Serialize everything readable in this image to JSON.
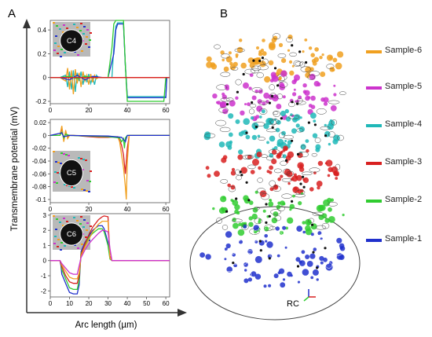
{
  "figure": {
    "panel_a": "A",
    "panel_b": "B",
    "y_axis_label": "Transmembrane potential (mV)",
    "x_axis_label": "Arc length (µm)",
    "rc_label": "RC"
  },
  "colors": {
    "orange": "#f0a020",
    "magenta": "#cc33cc",
    "cyan": "#20b8b8",
    "red": "#d82020",
    "green": "#30cc30",
    "blue": "#2030cc"
  },
  "chart_data": [
    {
      "type": "line",
      "inset_label": "C4",
      "xlim": [
        0,
        62
      ],
      "ylim": [
        -0.22,
        0.48
      ],
      "yticks": [
        -0.2,
        0,
        0.2,
        0.4
      ],
      "ytick_labels": [
        "-0.2",
        "0",
        "0.2",
        "0.4"
      ],
      "xticks": [
        0,
        20,
        40,
        60
      ],
      "xtick_labels": [
        "0",
        "20",
        "40",
        "60"
      ],
      "series": [
        {
          "color": "#20b8b8",
          "x": [
            0,
            5,
            8,
            9,
            10,
            11,
            12,
            13,
            14,
            15,
            16,
            17,
            18,
            19,
            20,
            21,
            22,
            23,
            24,
            25,
            27,
            30,
            32,
            33,
            34,
            35,
            38,
            39,
            40,
            45,
            55,
            58,
            60,
            60.5,
            62
          ],
          "y": [
            0,
            0,
            0.02,
            -0.08,
            0.05,
            -0.1,
            0.06,
            -0.12,
            0.04,
            -0.03,
            0.05,
            -0.06,
            0.02,
            -0.04,
            0.03,
            -0.05,
            0,
            -0.06,
            0.02,
            0,
            0,
            0,
            0,
            0.25,
            0.43,
            0.46,
            0.46,
            0.1,
            -0.16,
            -0.16,
            -0.16,
            -0.16,
            -0.16,
            0,
            0
          ]
        },
        {
          "color": "#f0a020",
          "x": [
            0,
            5,
            8,
            9,
            10,
            11,
            12,
            13,
            14,
            15,
            16,
            17,
            18,
            19,
            20,
            21,
            22,
            23,
            24,
            25,
            27,
            30,
            32,
            33,
            34,
            35,
            38,
            39,
            40,
            45,
            55,
            58,
            60,
            60.5,
            62
          ],
          "y": [
            0,
            0,
            -0.03,
            0.08,
            -0.1,
            0.06,
            -0.14,
            0.07,
            -0.05,
            0.04,
            -0.08,
            0.05,
            -0.03,
            0.02,
            -0.06,
            0.03,
            -0.04,
            0.02,
            -0.01,
            0,
            0,
            0,
            0,
            0,
            0,
            0,
            0,
            0,
            0,
            0,
            0,
            0,
            0,
            0,
            0
          ]
        },
        {
          "color": "#2030cc",
          "x": [
            0,
            5,
            10,
            14,
            18,
            22,
            27,
            30,
            33,
            34,
            35,
            38,
            39,
            40,
            45,
            55,
            58,
            60,
            60.5,
            62
          ],
          "y": [
            0,
            0,
            -0.02,
            0.02,
            -0.02,
            0.01,
            0,
            0,
            0.2,
            0.4,
            0.45,
            0.45,
            0.1,
            -0.17,
            -0.17,
            -0.17,
            -0.17,
            -0.17,
            0,
            0
          ]
        },
        {
          "color": "#30cc30",
          "x": [
            0,
            5,
            10,
            14,
            18,
            22,
            27,
            30,
            32,
            33,
            34,
            35,
            38,
            39,
            40,
            45,
            55,
            58,
            59,
            60,
            62
          ],
          "y": [
            0,
            0,
            0.01,
            -0.01,
            0.01,
            0,
            0,
            0,
            0.25,
            0.45,
            0.48,
            0.48,
            0.48,
            0.1,
            -0.2,
            -0.2,
            -0.2,
            -0.2,
            -0.2,
            0,
            0
          ]
        },
        {
          "color": "#d82020",
          "x": [
            0,
            30,
            62
          ],
          "y": [
            0,
            0,
            0
          ]
        }
      ]
    },
    {
      "type": "line",
      "inset_label": "C5",
      "xlim": [
        0,
        62
      ],
      "ylim": [
        -0.105,
        0.025
      ],
      "yticks": [
        -0.1,
        -0.08,
        -0.06,
        -0.04,
        -0.02,
        0,
        0.02
      ],
      "ytick_labels": [
        "-0.1",
        "-0.08",
        "-0.06",
        "-0.04",
        "-0.02",
        "0",
        "0.02"
      ],
      "xticks": [
        0,
        20,
        40,
        60
      ],
      "xtick_labels": [
        "0",
        "20",
        "40",
        "60"
      ],
      "series": [
        {
          "color": "#d82020",
          "x": [
            0,
            5,
            6,
            7,
            8,
            9,
            10,
            12,
            20,
            25,
            30,
            35,
            36,
            37,
            38,
            39,
            40,
            41,
            42,
            45,
            62
          ],
          "y": [
            0,
            0,
            0.012,
            -0.008,
            0.006,
            -0.004,
            0,
            0,
            -0.002,
            -0.003,
            -0.003,
            -0.002,
            -0.008,
            -0.015,
            -0.03,
            -0.06,
            -0.02,
            0,
            0,
            0,
            0
          ]
        },
        {
          "color": "#f0a020",
          "x": [
            0,
            5,
            6,
            7,
            8,
            9,
            10,
            12,
            20,
            25,
            30,
            35,
            36,
            37,
            38,
            39,
            39.5,
            40,
            41,
            42,
            45,
            62
          ],
          "y": [
            0,
            0,
            0.015,
            -0.01,
            0.008,
            -0.005,
            0,
            0,
            -0.001,
            -0.002,
            -0.002,
            -0.002,
            -0.01,
            -0.03,
            -0.05,
            -0.08,
            -0.1,
            -0.04,
            0,
            0,
            0,
            0
          ]
        },
        {
          "color": "#30cc30",
          "x": [
            0,
            5,
            6,
            7,
            8,
            10,
            20,
            30,
            36,
            37,
            38,
            38.5,
            39,
            40,
            45,
            62
          ],
          "y": [
            0,
            0,
            0.005,
            -0.004,
            0.002,
            0,
            -0.001,
            -0.002,
            -0.004,
            -0.01,
            -0.005,
            -0.02,
            -0.004,
            0,
            0,
            0
          ]
        },
        {
          "color": "#2030cc",
          "x": [
            0,
            6,
            7,
            10,
            30,
            37,
            38,
            39,
            40,
            62
          ],
          "y": [
            0,
            0.004,
            -0.002,
            0,
            -0.001,
            -0.003,
            -0.006,
            -0.01,
            0,
            0
          ]
        }
      ]
    },
    {
      "type": "line",
      "inset_label": "C6",
      "xlim": [
        0,
        62
      ],
      "ylim": [
        -2.4,
        3.1
      ],
      "yticks": [
        -2,
        -1,
        0,
        1,
        2,
        3
      ],
      "ytick_labels": [
        "-2",
        "-1",
        "0",
        "1",
        "2",
        "3"
      ],
      "xticks": [
        0,
        10,
        20,
        30,
        40,
        50,
        60
      ],
      "xtick_labels": [
        "0",
        "10",
        "20",
        "30",
        "40",
        "50",
        "60"
      ],
      "series": [
        {
          "color": "#2030cc",
          "x": [
            0,
            5,
            5.5,
            6,
            7,
            8,
            10,
            12,
            14,
            15,
            16,
            18,
            20,
            22,
            25,
            27,
            28,
            30,
            31,
            32,
            33,
            40,
            62
          ],
          "y": [
            0,
            0,
            -0.3,
            -0.9,
            -1.2,
            -1.5,
            -2.1,
            -2.2,
            -2.2,
            -1.6,
            0.6,
            1.2,
            1.6,
            2.0,
            2.3,
            2.3,
            2.1,
            1.2,
            0.2,
            0,
            0,
            0,
            0
          ]
        },
        {
          "color": "#30cc30",
          "x": [
            0,
            5,
            5.5,
            6,
            7,
            8,
            10,
            12,
            14,
            15,
            16,
            18,
            20,
            22,
            25,
            27,
            28,
            30,
            31,
            32,
            33,
            40,
            62
          ],
          "y": [
            0,
            0,
            -0.2,
            -0.6,
            -0.9,
            -1.2,
            -1.8,
            -1.9,
            -1.9,
            -1.3,
            0.5,
            1.0,
            1.5,
            1.8,
            2.1,
            2.1,
            1.9,
            1.0,
            0.1,
            0,
            0,
            0,
            0
          ]
        },
        {
          "color": "#d82020",
          "x": [
            0,
            5,
            5.5,
            6,
            7,
            8,
            10,
            12,
            14,
            15,
            16,
            18,
            20,
            22,
            25,
            27,
            28,
            30,
            30.5,
            31,
            32,
            33,
            40,
            62
          ],
          "y": [
            0,
            0,
            -0.2,
            -0.4,
            -0.7,
            -1.0,
            -1.4,
            -1.5,
            -1.5,
            -1.0,
            0.4,
            1.1,
            1.7,
            2.2,
            2.7,
            2.9,
            2.95,
            2.9,
            1.5,
            0.3,
            0,
            0,
            0,
            0
          ]
        },
        {
          "color": "#f0a020",
          "x": [
            0,
            5,
            5.5,
            6,
            7,
            8,
            10,
            12,
            14,
            15,
            16,
            18,
            20,
            22,
            25,
            27,
            28,
            30,
            30.5,
            31,
            32,
            33,
            40,
            62
          ],
          "y": [
            0,
            0,
            -0.1,
            -0.3,
            -0.5,
            -0.7,
            -1.1,
            -1.2,
            -1.2,
            -0.8,
            0.3,
            0.9,
            1.4,
            1.9,
            2.4,
            2.6,
            2.6,
            2.6,
            1.3,
            0.2,
            0,
            0,
            0,
            0
          ]
        },
        {
          "color": "#cc33cc",
          "x": [
            0,
            5,
            6,
            8,
            10,
            12,
            14,
            16,
            18,
            20,
            22,
            25,
            27,
            28,
            30,
            31,
            32,
            40,
            62
          ],
          "y": [
            0,
            0,
            -0.2,
            -0.5,
            -0.8,
            -0.9,
            -0.9,
            0.2,
            0.7,
            1.1,
            1.4,
            1.8,
            2.0,
            2.0,
            1.9,
            0.8,
            0,
            0,
            0
          ]
        }
      ]
    }
  ],
  "legend": [
    {
      "label": "Sample-6",
      "color": "#f0a020"
    },
    {
      "label": "Sample-5",
      "color": "#cc33cc"
    },
    {
      "label": "Sample-4",
      "color": "#20b8b8"
    },
    {
      "label": "Sample-3",
      "color": "#d82020"
    },
    {
      "label": "Sample-2",
      "color": "#30cc30"
    },
    {
      "label": "Sample-1",
      "color": "#2030cc"
    }
  ]
}
